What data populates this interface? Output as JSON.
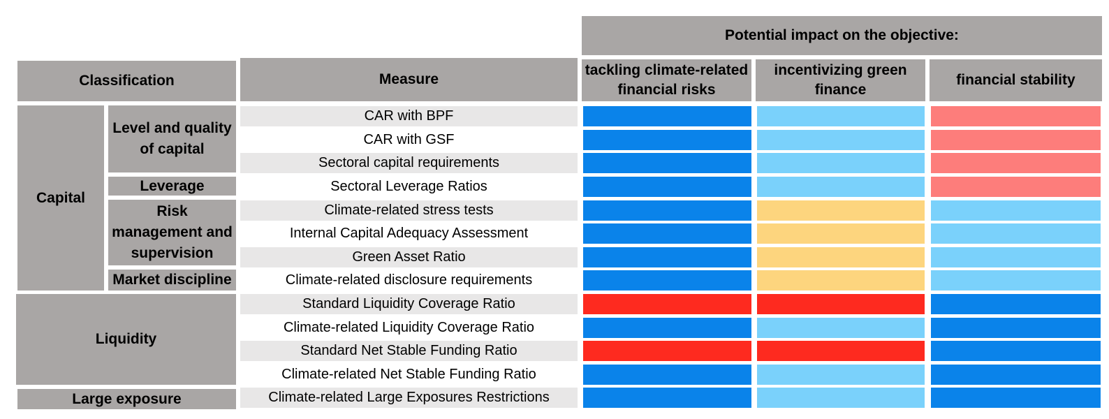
{
  "colors": {
    "dark_blue": "#0a83ea",
    "light_blue": "#7ad1fb",
    "yellow": "#fdd57e",
    "salmon": "#fd7d7b",
    "red": "#fe2a1f",
    "header_gray": "#a9a6a5",
    "row_shade": "#e8e7e7"
  },
  "headers": {
    "potential_impact": "Potential impact on the objective:",
    "classification": "Classification",
    "measure": "Measure",
    "objective_1": "tackling climate-related financial risks",
    "objective_2": "incentivizing green finance",
    "objective_3": "financial stability"
  },
  "classification": {
    "capital": "Capital",
    "level_quality": "Level and quality of capital",
    "leverage": "Leverage",
    "risk_management": "Risk management and supervision",
    "market_discipline": "Market discipline",
    "liquidity": "Liquidity",
    "large_exposure": "Large exposure"
  },
  "rows": [
    {
      "measure": "CAR with BPF",
      "impacts": [
        "dark_blue",
        "light_blue",
        "salmon"
      ]
    },
    {
      "measure": "CAR with GSF",
      "impacts": [
        "dark_blue",
        "light_blue",
        "salmon"
      ]
    },
    {
      "measure": "Sectoral capital requirements",
      "impacts": [
        "dark_blue",
        "light_blue",
        "salmon"
      ]
    },
    {
      "measure": "Sectoral Leverage Ratios",
      "impacts": [
        "dark_blue",
        "light_blue",
        "salmon"
      ]
    },
    {
      "measure": "Climate-related stress tests",
      "impacts": [
        "dark_blue",
        "yellow",
        "light_blue"
      ]
    },
    {
      "measure": "Internal Capital Adequacy Assessment",
      "impacts": [
        "dark_blue",
        "yellow",
        "light_blue"
      ]
    },
    {
      "measure": "Green Asset Ratio",
      "impacts": [
        "dark_blue",
        "yellow",
        "light_blue"
      ]
    },
    {
      "measure": "Climate-related disclosure requirements",
      "impacts": [
        "dark_blue",
        "yellow",
        "light_blue"
      ]
    },
    {
      "measure": "Standard Liquidity Coverage Ratio",
      "impacts": [
        "red",
        "red",
        "dark_blue"
      ]
    },
    {
      "measure": "Climate-related Liquidity Coverage Ratio",
      "impacts": [
        "dark_blue",
        "light_blue",
        "dark_blue"
      ]
    },
    {
      "measure": "Standard Net Stable Funding Ratio",
      "impacts": [
        "red",
        "red",
        "dark_blue"
      ]
    },
    {
      "measure": "Climate-related Net Stable Funding Ratio",
      "impacts": [
        "dark_blue",
        "light_blue",
        "dark_blue"
      ]
    },
    {
      "measure": "Climate-related Large Exposures Restrictions",
      "impacts": [
        "dark_blue",
        "light_blue",
        "dark_blue"
      ]
    }
  ]
}
